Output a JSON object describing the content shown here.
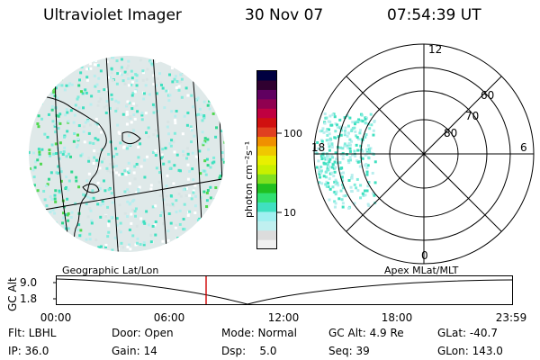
{
  "header": {
    "title": "Ultraviolet Imager",
    "date": "30 Nov 07",
    "time": "07:54:39 UT"
  },
  "colorbar": {
    "unit_label": "photon cm⁻²s⁻¹",
    "ticks": [
      "100",
      "10"
    ],
    "colors": [
      "#f0f0f0",
      "#dcdcdc",
      "#c0f0f0",
      "#a0f0f0",
      "#40e0c0",
      "#30e070",
      "#20c020",
      "#80e020",
      "#c8f000",
      "#e8f000",
      "#f0c800",
      "#f09000",
      "#e04020",
      "#d01010",
      "#c00040",
      "#900050",
      "#600060",
      "#300030",
      "#000040"
    ]
  },
  "polar": {
    "lat_labels": [
      "60",
      "70",
      "80"
    ],
    "mlt_labels": [
      "12",
      "18",
      "6",
      "0"
    ]
  },
  "geo_labels": {
    "left": "Geographic Lat/Lon",
    "right": "Apex MLat/MLT"
  },
  "timeline": {
    "y_title": "GC Alt",
    "y_ticks": [
      "9.0",
      "1.8"
    ],
    "x_ticks": [
      "00:00",
      "06:00",
      "12:00",
      "18:00",
      "23:59"
    ],
    "marker_color": "#d00000"
  },
  "info": {
    "row1": [
      "Flt: LBHL",
      "Door: Open",
      "Mode: Normal",
      "GC Alt: 4.9 Re",
      "GLat: -40.7"
    ],
    "row2": [
      "IP: 36.0",
      "Gain: 14",
      "Dsp:    5.0",
      "Seq: 39",
      "GLon: 143.0"
    ]
  },
  "icons": {
    "earth_image": "uv-earth-disk-icon",
    "polar_image": "polar-aurora-icon"
  }
}
